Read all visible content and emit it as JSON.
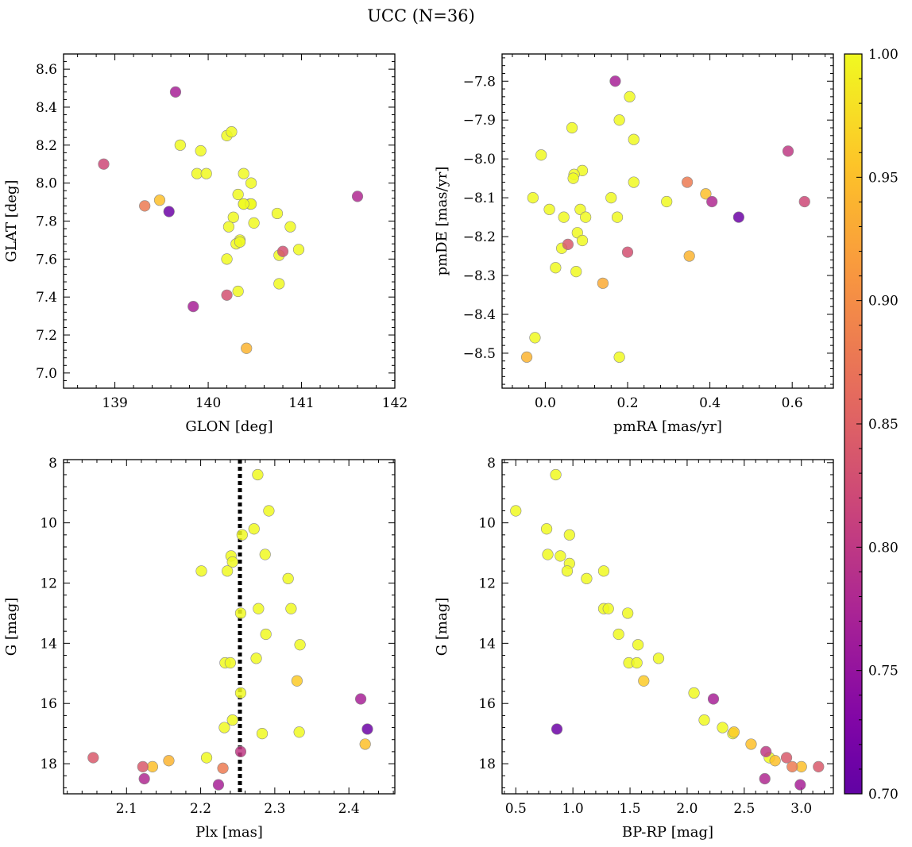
{
  "figure": {
    "title": "UCC (N=36)"
  },
  "colorbar": {
    "ticks": [
      "0.70",
      "0.75",
      "0.80",
      "0.85",
      "0.90",
      "0.95",
      "1.00"
    ],
    "range": [
      0.7,
      1.0
    ],
    "colormap": "plasma"
  },
  "chart_data": [
    {
      "type": "scatter",
      "panel": "top-left",
      "xlabel": "GLON [deg]",
      "ylabel": "GLAT [deg]",
      "xlim": [
        138.45,
        142.0
      ],
      "ylim": [
        6.92,
        8.68
      ],
      "xticks": [
        139,
        140,
        141,
        142
      ],
      "yticks": [
        7.0,
        7.2,
        7.4,
        7.6,
        7.8,
        8.0,
        8.2,
        8.4,
        8.6
      ],
      "x": [
        139.65,
        138.88,
        139.7,
        139.92,
        140.2,
        140.25,
        139.88,
        139.98,
        140.38,
        140.46,
        140.32,
        140.38,
        140.45,
        140.46,
        140.27,
        140.49,
        140.22,
        140.34,
        140.3,
        140.74,
        140.88,
        140.76,
        140.97,
        140.2,
        140.76,
        140.32,
        140.41,
        139.32,
        139.48,
        139.58,
        139.84,
        140.2,
        140.8,
        141.6,
        140.38,
        140.34
      ],
      "y": [
        8.48,
        8.1,
        8.2,
        8.17,
        8.25,
        8.27,
        8.05,
        8.05,
        8.05,
        8.0,
        7.94,
        7.89,
        7.89,
        7.89,
        7.82,
        7.79,
        7.77,
        7.7,
        7.68,
        7.84,
        7.77,
        7.62,
        7.65,
        7.6,
        7.47,
        7.43,
        7.13,
        7.88,
        7.91,
        7.85,
        7.35,
        7.41,
        7.64,
        7.93,
        7.89,
        7.69
      ],
      "c": [
        0.77,
        0.82,
        1.0,
        1.0,
        1.0,
        1.0,
        1.0,
        1.0,
        1.0,
        1.0,
        1.0,
        1.0,
        1.0,
        1.0,
        1.0,
        1.0,
        1.0,
        1.0,
        1.0,
        1.0,
        1.0,
        1.0,
        1.0,
        1.0,
        1.0,
        1.0,
        0.94,
        0.88,
        0.95,
        0.71,
        0.77,
        0.83,
        0.83,
        0.78,
        1.0,
        1.0
      ]
    },
    {
      "type": "scatter",
      "panel": "top-right",
      "xlabel": "pmRA [mas/yr]",
      "ylabel": "pmDE [mas/yr]",
      "xlim": [
        -0.105,
        0.7
      ],
      "ylim": [
        -8.59,
        -7.73
      ],
      "xticks": [
        0.0,
        0.2,
        0.4,
        0.6
      ],
      "xticklabels": [
        "0.0",
        "0.2",
        "0.4",
        "0.6"
      ],
      "yticks": [
        -8.5,
        -8.4,
        -8.3,
        -8.2,
        -8.1,
        -8.0,
        -7.9,
        -7.8
      ],
      "yticklabels": [
        "−8.5",
        "−8.4",
        "−8.3",
        "−8.2",
        "−8.1",
        "−8.0",
        "−7.9",
        "−7.8"
      ],
      "x": [
        0.17,
        0.205,
        0.065,
        0.18,
        0.215,
        -0.01,
        0.09,
        0.07,
        0.068,
        0.215,
        -0.03,
        0.16,
        0.01,
        0.045,
        0.085,
        0.098,
        0.175,
        0.078,
        0.09,
        0.04,
        0.025,
        0.075,
        0.295,
        -0.025,
        -0.045,
        0.18,
        0.14,
        0.345,
        0.39,
        0.35,
        0.055,
        0.2,
        0.405,
        0.59,
        0.63,
        0.47
      ],
      "y": [
        -7.8,
        -7.84,
        -7.92,
        -7.9,
        -7.95,
        -7.99,
        -8.03,
        -8.04,
        -8.05,
        -8.06,
        -8.1,
        -8.1,
        -8.13,
        -8.15,
        -8.13,
        -8.15,
        -8.15,
        -8.19,
        -8.21,
        -8.23,
        -8.28,
        -8.29,
        -8.11,
        -8.46,
        -8.51,
        -8.51,
        -8.32,
        -8.06,
        -8.09,
        -8.25,
        -8.22,
        -8.24,
        -8.11,
        -7.98,
        -8.11,
        -8.15
      ],
      "c": [
        0.77,
        1.0,
        1.0,
        1.0,
        1.0,
        1.0,
        1.0,
        1.0,
        1.0,
        1.0,
        1.0,
        1.0,
        1.0,
        1.0,
        1.0,
        1.0,
        1.0,
        1.0,
        1.0,
        1.0,
        1.0,
        1.0,
        1.0,
        1.0,
        0.94,
        1.0,
        0.93,
        0.88,
        0.95,
        0.94,
        0.84,
        0.83,
        0.78,
        0.8,
        0.82,
        0.71
      ]
    },
    {
      "type": "scatter",
      "panel": "bottom-left",
      "xlabel": "Plx [mas]",
      "ylabel": "G [mag]",
      "xlim": [
        2.015,
        2.462
      ],
      "ylim": [
        19.0,
        7.9
      ],
      "xticks": [
        2.1,
        2.2,
        2.3,
        2.4
      ],
      "xticklabels": [
        "2.1",
        "2.2",
        "2.3",
        "2.4"
      ],
      "yticks": [
        8,
        10,
        12,
        14,
        16,
        18
      ],
      "vline": 2.253,
      "x": [
        2.277,
        2.292,
        2.272,
        2.256,
        2.287,
        2.241,
        2.243,
        2.201,
        2.236,
        2.318,
        2.278,
        2.322,
        2.254,
        2.288,
        2.334,
        2.233,
        2.24,
        2.275,
        2.33,
        2.254,
        2.243,
        2.232,
        2.283,
        2.333,
        2.208,
        2.055,
        2.122,
        2.135,
        2.157,
        2.23,
        2.124,
        2.224,
        2.254,
        2.416,
        2.422,
        2.425
      ],
      "y": [
        8.4,
        9.6,
        10.2,
        10.4,
        11.05,
        11.1,
        11.3,
        11.6,
        11.6,
        11.85,
        12.85,
        12.85,
        13.0,
        13.7,
        14.05,
        14.65,
        14.65,
        14.5,
        15.25,
        15.65,
        16.55,
        16.8,
        17.0,
        16.95,
        17.8,
        17.8,
        18.1,
        18.1,
        17.9,
        18.15,
        18.5,
        18.7,
        17.6,
        15.85,
        17.35,
        16.85
      ],
      "c": [
        1.0,
        1.0,
        1.0,
        1.0,
        1.0,
        1.0,
        1.0,
        1.0,
        1.0,
        1.0,
        1.0,
        1.0,
        1.0,
        1.0,
        1.0,
        1.0,
        1.0,
        1.0,
        0.96,
        1.0,
        1.0,
        1.0,
        1.0,
        1.0,
        1.0,
        0.84,
        0.84,
        0.95,
        0.94,
        0.88,
        0.78,
        0.77,
        0.8,
        0.77,
        0.95,
        0.71
      ]
    },
    {
      "type": "scatter",
      "panel": "bottom-right",
      "xlabel": "BP-RP [mag]",
      "ylabel": "G [mag]",
      "xlim": [
        0.38,
        3.28
      ],
      "ylim": [
        19.0,
        7.9
      ],
      "xticks": [
        0.5,
        1.0,
        1.5,
        2.0,
        2.5,
        3.0
      ],
      "xticklabels": [
        "0.5",
        "1.0",
        "1.5",
        "2.0",
        "2.5",
        "3.0"
      ],
      "yticks": [
        8,
        10,
        12,
        14,
        16,
        18
      ],
      "x": [
        0.85,
        0.5,
        0.77,
        0.97,
        0.78,
        0.89,
        0.97,
        0.95,
        1.27,
        1.12,
        1.27,
        1.31,
        1.48,
        1.4,
        1.57,
        1.49,
        1.56,
        1.75,
        1.62,
        2.06,
        2.15,
        2.31,
        2.41,
        2.4,
        2.56,
        2.72,
        2.77,
        2.92,
        3.0,
        3.15,
        2.87,
        2.68,
        2.69,
        2.23,
        0.86,
        2.99
      ],
      "y": [
        8.4,
        9.6,
        10.2,
        10.4,
        11.05,
        11.1,
        11.35,
        11.6,
        11.6,
        11.85,
        12.85,
        12.85,
        13.0,
        13.7,
        14.05,
        14.65,
        14.65,
        14.5,
        15.25,
        15.65,
        16.55,
        16.8,
        16.95,
        17.0,
        17.35,
        17.8,
        17.9,
        18.1,
        18.1,
        18.1,
        17.8,
        18.5,
        17.6,
        15.85,
        16.85,
        18.7
      ],
      "c": [
        1.0,
        1.0,
        1.0,
        1.0,
        1.0,
        1.0,
        1.0,
        1.0,
        1.0,
        1.0,
        1.0,
        1.0,
        1.0,
        1.0,
        1.0,
        1.0,
        1.0,
        1.0,
        0.96,
        1.0,
        1.0,
        1.0,
        0.96,
        1.0,
        0.95,
        1.0,
        0.95,
        0.88,
        0.95,
        0.84,
        0.84,
        0.78,
        0.8,
        0.77,
        0.71,
        0.77
      ]
    }
  ]
}
